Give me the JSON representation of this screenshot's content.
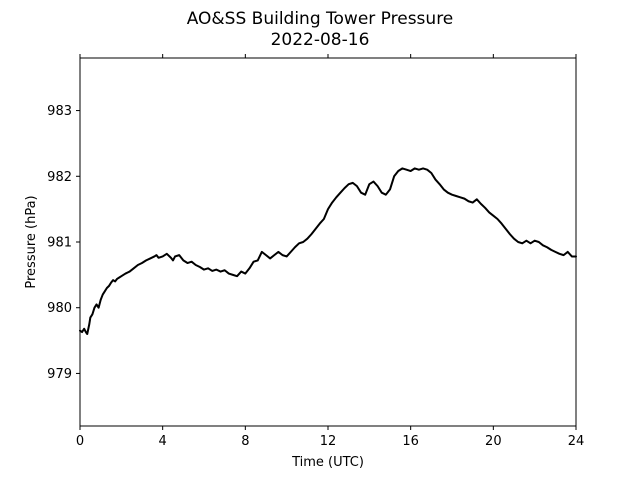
{
  "chart_data": {
    "type": "line",
    "title": "AO&SS Building Tower Pressure",
    "subtitle": "2022-08-16",
    "xlabel": "Time (UTC)",
    "ylabel": "Pressure (hPa)",
    "xlim": [
      0,
      24
    ],
    "ylim": [
      978.2,
      983.8
    ],
    "xticks": [
      0,
      4,
      8,
      12,
      16,
      20,
      24
    ],
    "xtick_labels": [
      "0",
      "4",
      "8",
      "12",
      "16",
      "20",
      "24"
    ],
    "yticks": [
      979,
      980,
      981,
      982,
      983
    ],
    "ytick_labels": [
      "979",
      "980",
      "981",
      "982",
      "983"
    ],
    "grid": false,
    "line_color": "#000000",
    "series": [
      {
        "x": [
          0.0,
          0.1,
          0.2,
          0.3,
          0.35,
          0.45,
          0.5,
          0.6,
          0.7,
          0.8,
          0.9,
          1.0,
          1.1,
          1.2,
          1.3,
          1.4,
          1.5,
          1.6,
          1.7,
          1.8,
          1.9,
          2.0,
          2.2,
          2.4,
          2.6,
          2.8,
          3.0,
          3.2,
          3.4,
          3.6,
          3.7,
          3.8,
          4.0,
          4.2,
          4.4,
          4.5,
          4.6,
          4.8,
          5.0,
          5.2,
          5.4,
          5.6,
          5.8,
          6.0,
          6.2,
          6.4,
          6.6,
          6.8,
          7.0,
          7.2,
          7.4,
          7.6,
          7.8,
          8.0,
          8.2,
          8.4,
          8.6,
          8.8,
          9.0,
          9.2,
          9.4,
          9.6,
          9.8,
          10.0,
          10.2,
          10.4,
          10.6,
          10.8,
          11.0,
          11.2,
          11.4,
          11.6,
          11.8,
          12.0,
          12.2,
          12.4,
          12.6,
          12.8,
          13.0,
          13.2,
          13.4,
          13.6,
          13.8,
          14.0,
          14.2,
          14.4,
          14.6,
          14.8,
          15.0,
          15.2,
          15.4,
          15.6,
          15.8,
          16.0,
          16.2,
          16.4,
          16.6,
          16.8,
          17.0,
          17.2,
          17.4,
          17.6,
          17.8,
          18.0,
          18.2,
          18.4,
          18.6,
          18.8,
          19.0,
          19.2,
          19.4,
          19.6,
          19.8,
          20.0,
          20.2,
          20.4,
          20.6,
          20.8,
          21.0,
          21.2,
          21.4,
          21.6,
          21.8,
          22.0,
          22.2,
          22.4,
          22.6,
          22.8,
          23.0,
          23.2,
          23.4,
          23.6,
          23.8,
          24.0
        ],
        "y": [
          979.65,
          979.63,
          979.68,
          979.62,
          979.6,
          979.75,
          979.85,
          979.9,
          980.0,
          980.05,
          980.0,
          980.12,
          980.2,
          980.25,
          980.3,
          980.33,
          980.38,
          980.42,
          980.4,
          980.44,
          980.46,
          980.48,
          980.52,
          980.55,
          980.6,
          980.65,
          980.68,
          980.72,
          980.75,
          980.78,
          980.8,
          980.76,
          980.78,
          980.82,
          980.76,
          980.72,
          980.78,
          980.8,
          980.72,
          980.68,
          980.7,
          980.65,
          980.62,
          980.58,
          980.6,
          980.56,
          980.58,
          980.55,
          980.57,
          980.52,
          980.5,
          980.48,
          980.55,
          980.52,
          980.6,
          980.7,
          980.72,
          980.85,
          980.8,
          980.75,
          980.8,
          980.85,
          980.8,
          980.78,
          980.85,
          980.92,
          980.98,
          981.0,
          981.05,
          981.12,
          981.2,
          981.28,
          981.35,
          981.5,
          981.6,
          981.68,
          981.75,
          981.82,
          981.88,
          981.9,
          981.85,
          981.75,
          981.72,
          981.88,
          981.92,
          981.85,
          981.75,
          981.72,
          981.8,
          982.0,
          982.08,
          982.12,
          982.1,
          982.08,
          982.12,
          982.1,
          982.12,
          982.1,
          982.05,
          981.95,
          981.88,
          981.8,
          981.75,
          981.72,
          981.7,
          981.68,
          981.66,
          981.62,
          981.6,
          981.65,
          981.58,
          981.52,
          981.45,
          981.4,
          981.35,
          981.28,
          981.2,
          981.12,
          981.05,
          981.0,
          980.98,
          981.02,
          980.98,
          981.02,
          981.0,
          980.95,
          980.92,
          980.88,
          980.85,
          980.82,
          980.8,
          980.85,
          980.78,
          980.78
        ]
      }
    ]
  }
}
